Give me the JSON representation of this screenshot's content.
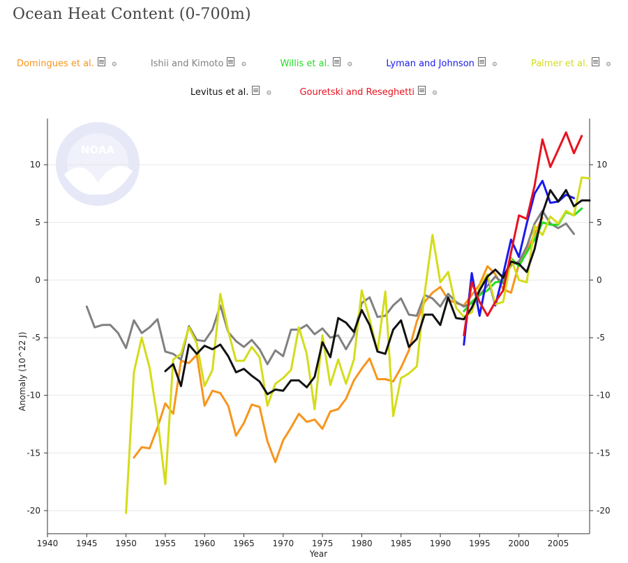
{
  "title": "Ocean Heat Content (0-700m)",
  "legend": [
    {
      "label": "Domingues et al.",
      "color": "#f7951d"
    },
    {
      "label": "Ishii and Kimoto",
      "color": "#808080"
    },
    {
      "label": "Willis et al.",
      "color": "#22dd22"
    },
    {
      "label": "Lyman and Johnson",
      "color": "#1a1aee"
    },
    {
      "label": "Palmer et al.",
      "color": "#d4dc19"
    },
    {
      "label": "Levitus et al.",
      "color": "#111111"
    },
    {
      "label": "Gouretski and Reseghetti",
      "color": "#e8121e"
    }
  ],
  "icons": {
    "doc": "document-icon",
    "settings": "gear-icon"
  },
  "watermark": "NOAA",
  "chart_data": {
    "type": "line",
    "xlabel": "Year",
    "ylabel": "Anomaly (10^22 J)",
    "xlim": [
      1940,
      2009
    ],
    "ylim": [
      -22,
      14
    ],
    "x_ticks": [
      1940,
      1945,
      1950,
      1955,
      1960,
      1965,
      1970,
      1975,
      1980,
      1985,
      1990,
      1995,
      2000,
      2005
    ],
    "y_ticks": [
      -20,
      -15,
      -10,
      -5,
      0,
      5,
      10
    ],
    "grid": true,
    "series": [
      {
        "name": "Domingues et al.",
        "color": "#f7951d",
        "x": [
          1951,
          1952,
          1953,
          1954,
          1955,
          1956,
          1957,
          1958,
          1959,
          1960,
          1961,
          1962,
          1963,
          1964,
          1965,
          1966,
          1967,
          1968,
          1969,
          1970,
          1971,
          1972,
          1973,
          1974,
          1975,
          1976,
          1977,
          1978,
          1979,
          1980,
          1981,
          1982,
          1983,
          1984,
          1985,
          1986,
          1987,
          1988,
          1989,
          1990,
          1991,
          1992,
          1993,
          1994,
          1995,
          1996,
          1997,
          1998,
          1999,
          2000,
          2001,
          2002,
          2003
        ],
        "y": [
          -15.4,
          -14.5,
          -14.6,
          -12.8,
          -10.7,
          -11.6,
          -7.0,
          -7.2,
          -6.5,
          -10.9,
          -9.6,
          -9.8,
          -10.9,
          -13.5,
          -12.4,
          -10.8,
          -11.0,
          -14.0,
          -15.8,
          -13.9,
          -12.8,
          -11.6,
          -12.3,
          -12.1,
          -12.9,
          -11.4,
          -11.2,
          -10.3,
          -8.7,
          -7.7,
          -6.8,
          -8.6,
          -8.6,
          -8.8,
          -7.6,
          -6.1,
          -3.6,
          -1.9,
          -1.1,
          -0.6,
          -1.7,
          -2.0,
          -2.2,
          -1.3,
          -0.4,
          1.2,
          0.5,
          -0.8,
          -1.1,
          1.4,
          2.5,
          4.0,
          5.4
        ]
      },
      {
        "name": "Ishii and Kimoto",
        "color": "#808080",
        "x": [
          1945,
          1946,
          1947,
          1948,
          1949,
          1950,
          1951,
          1952,
          1953,
          1954,
          1955,
          1956,
          1957,
          1958,
          1959,
          1960,
          1961,
          1962,
          1963,
          1964,
          1965,
          1966,
          1967,
          1968,
          1969,
          1970,
          1971,
          1972,
          1973,
          1974,
          1975,
          1976,
          1977,
          1978,
          1979,
          1980,
          1981,
          1982,
          1983,
          1984,
          1985,
          1986,
          1987,
          1988,
          1989,
          1990,
          1991,
          1992,
          1993,
          1994,
          1995,
          1996,
          1997,
          1998,
          1999,
          2000,
          2001,
          2002,
          2003,
          2004,
          2005,
          2006,
          2007
        ],
        "y": [
          -2.3,
          -4.1,
          -3.9,
          -3.9,
          -4.6,
          -5.9,
          -3.5,
          -4.6,
          -4.1,
          -3.4,
          -6.2,
          -6.4,
          -6.9,
          -4.0,
          -5.2,
          -5.3,
          -4.3,
          -2.2,
          -4.5,
          -5.3,
          -5.8,
          -5.2,
          -6.0,
          -7.3,
          -6.1,
          -6.6,
          -4.3,
          -4.3,
          -3.9,
          -4.7,
          -4.2,
          -5.0,
          -4.8,
          -6.0,
          -4.8,
          -2.0,
          -1.5,
          -3.2,
          -3.1,
          -2.2,
          -1.6,
          -3.0,
          -3.1,
          -1.3,
          -1.6,
          -2.3,
          -1.2,
          -1.9,
          -2.3,
          -2.0,
          -1.3,
          -0.5,
          0.3,
          -0.3,
          1.3,
          1.6,
          2.9,
          4.9,
          6.0,
          4.9,
          4.5,
          4.9,
          4.0
        ]
      },
      {
        "name": "Willis et al.",
        "color": "#22dd22",
        "x": [
          1993,
          1994,
          1995,
          1996,
          1997,
          1998,
          1999,
          2000,
          2001,
          2002,
          2003,
          2004,
          2005,
          2006,
          2007,
          2008
        ],
        "y": [
          -2.7,
          -1.9,
          -1.3,
          -0.9,
          -0.2,
          -0.1,
          1.9,
          1.2,
          2.4,
          3.5,
          5.0,
          4.8,
          4.8,
          5.9,
          5.6,
          6.2
        ]
      },
      {
        "name": "Lyman and Johnson",
        "color": "#1a1aee",
        "x": [
          1993,
          1994,
          1995,
          1996,
          1997,
          1998,
          1999,
          2000,
          2001,
          2002,
          2003,
          2004,
          2005,
          2006,
          2007
        ],
        "y": [
          -5.6,
          0.6,
          -3.1,
          0.4,
          -2.2,
          0.5,
          3.5,
          2.0,
          4.9,
          7.5,
          8.6,
          6.7,
          6.8,
          7.4,
          7.1
        ]
      },
      {
        "name": "Palmer et al.",
        "color": "#d4dc19",
        "x": [
          1950,
          1951,
          1952,
          1953,
          1954,
          1955,
          1956,
          1957,
          1958,
          1959,
          1960,
          1961,
          1962,
          1963,
          1964,
          1965,
          1966,
          1967,
          1968,
          1969,
          1970,
          1971,
          1972,
          1973,
          1974,
          1975,
          1976,
          1977,
          1978,
          1979,
          1980,
          1981,
          1982,
          1983,
          1984,
          1985,
          1986,
          1987,
          1988,
          1989,
          1990,
          1991,
          1992,
          1993,
          1994,
          1995,
          1996,
          1997,
          1998,
          1999,
          2000,
          2001,
          2002,
          2003,
          2004,
          2005,
          2006,
          2007,
          2008,
          2009
        ],
        "y": [
          -20.2,
          -8.0,
          -5.0,
          -7.6,
          -12.0,
          -17.7,
          -6.9,
          -6.4,
          -4.1,
          -5.5,
          -9.2,
          -7.8,
          -1.2,
          -4.4,
          -7.0,
          -7.0,
          -5.8,
          -6.7,
          -10.9,
          -9.0,
          -8.5,
          -7.8,
          -4.1,
          -6.4,
          -11.2,
          -4.8,
          -9.1,
          -6.9,
          -9.0,
          -6.9,
          -0.9,
          -3.4,
          -6.2,
          -1.0,
          -11.8,
          -8.5,
          -8.1,
          -7.5,
          -1.2,
          3.9,
          -0.2,
          0.7,
          -2.4,
          -3.2,
          -2.8,
          -0.6,
          0.5,
          -2.1,
          -1.9,
          1.8,
          0.0,
          -0.2,
          4.7,
          3.9,
          5.5,
          4.9,
          6.0,
          5.6,
          8.9,
          8.8
        ]
      },
      {
        "name": "Levitus et al.",
        "color": "#111111",
        "x": [
          1955,
          1956,
          1957,
          1958,
          1959,
          1960,
          1961,
          1962,
          1963,
          1964,
          1965,
          1966,
          1967,
          1968,
          1969,
          1970,
          1971,
          1972,
          1973,
          1974,
          1975,
          1976,
          1977,
          1978,
          1979,
          1980,
          1981,
          1982,
          1983,
          1984,
          1985,
          1986,
          1987,
          1988,
          1989,
          1990,
          1991,
          1992,
          1993,
          1994,
          1995,
          1996,
          1997,
          1998,
          1999,
          2000,
          2001,
          2002,
          2003,
          2004,
          2005,
          2006,
          2007,
          2008,
          2009
        ],
        "y": [
          -7.9,
          -7.3,
          -9.2,
          -5.6,
          -6.4,
          -5.7,
          -6.0,
          -5.6,
          -6.6,
          -8.0,
          -7.7,
          -8.3,
          -8.8,
          -9.9,
          -9.5,
          -9.6,
          -8.7,
          -8.7,
          -9.3,
          -8.4,
          -5.4,
          -6.7,
          -3.3,
          -3.7,
          -4.5,
          -2.6,
          -3.9,
          -6.2,
          -6.4,
          -4.3,
          -3.5,
          -5.8,
          -5.1,
          -3.0,
          -3.0,
          -3.9,
          -1.5,
          -3.3,
          -3.4,
          -2.4,
          -0.9,
          0.3,
          0.9,
          0.2,
          1.6,
          1.4,
          0.7,
          2.7,
          5.8,
          7.8,
          6.8,
          7.8,
          6.4,
          6.9,
          6.9
        ]
      },
      {
        "name": "Gouretski and Reseghetti",
        "color": "#e8121e",
        "x": [
          1993,
          1994,
          1995,
          1996,
          1997,
          1998,
          1999,
          2000,
          2001,
          2002,
          2003,
          2004,
          2005,
          2006,
          2007,
          2008
        ],
        "y": [
          -4.8,
          -0.2,
          -1.9,
          -3.1,
          -1.9,
          -0.9,
          2.4,
          5.6,
          5.3,
          8.2,
          12.2,
          9.8,
          11.3,
          12.8,
          11.0,
          12.5
        ]
      }
    ]
  }
}
